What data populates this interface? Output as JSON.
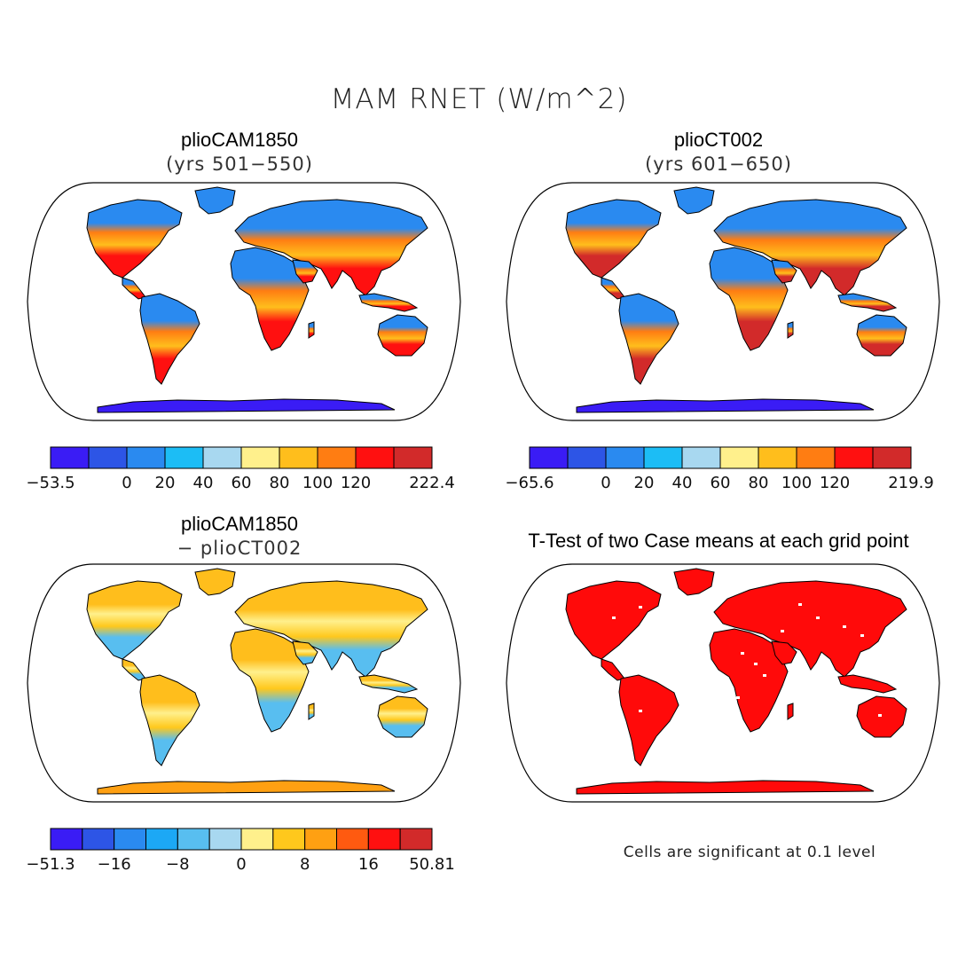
{
  "figure": {
    "title": "MAM RNET (W/m^2)"
  },
  "panels": [
    {
      "id": "cam1850",
      "title": "plioCAM1850",
      "subtitle": "(yrs 501−550)",
      "colorbar": {
        "colors": [
          "#3a1cf5",
          "#2d55e6",
          "#2a8af0",
          "#1cbdf5",
          "#a8d8f0",
          "#fff08c",
          "#ffbe1c",
          "#ff7d12",
          "#ff1010",
          "#d22a2a"
        ],
        "labels": [
          "−53.5",
          "0",
          "20",
          "40",
          "60",
          "80",
          "100",
          "120",
          "222.4"
        ],
        "label_edges": [
          0,
          2,
          3,
          4,
          5,
          6,
          7,
          8,
          10
        ]
      }
    },
    {
      "id": "ct002",
      "title": "plioCT002",
      "subtitle": "(yrs 601−650)",
      "colorbar": {
        "colors": [
          "#3a1cf5",
          "#2d55e6",
          "#2a8af0",
          "#1cbdf5",
          "#a8d8f0",
          "#fff08c",
          "#ffbe1c",
          "#ff7d12",
          "#ff1010",
          "#d22a2a"
        ],
        "labels": [
          "−65.6",
          "0",
          "20",
          "40",
          "60",
          "80",
          "100",
          "120",
          "219.9"
        ],
        "label_edges": [
          0,
          2,
          3,
          4,
          5,
          6,
          7,
          8,
          10
        ]
      }
    },
    {
      "id": "diff",
      "title": "plioCAM1850",
      "subtitle": "− plioCT002",
      "colorbar": {
        "colors": [
          "#3a1cf5",
          "#2d55e6",
          "#2a8af0",
          "#1ca8f5",
          "#58bef0",
          "#a8d8f0",
          "#fff08c",
          "#ffc81c",
          "#ffa012",
          "#ff5a10",
          "#ff1010",
          "#d22a2a"
        ],
        "labels": [
          "−51.3",
          "−16",
          "−8",
          "0",
          "8",
          "16",
          "50.81"
        ],
        "label_edges": [
          0,
          2,
          4,
          6,
          8,
          10,
          12
        ]
      }
    },
    {
      "id": "ttest",
      "title": "T-Test of two Case means at each grid point",
      "subtitle": "",
      "note": "Cells are significant at 0.1 level"
    }
  ],
  "map_colors": {
    "cam1850": {
      "ocean": "#ffffff",
      "north": "#2a8af0",
      "midlat": "#ff7d12",
      "tropics": "#ff1010",
      "desert": "#ffbe1c",
      "antarctica": "#3a1cf5"
    },
    "ct002": {
      "ocean": "#ffffff",
      "north": "#2a8af0",
      "midlat": "#ff7d12",
      "tropics": "#d22a2a",
      "desert": "#ffbe1c",
      "antarctica": "#3a1cf5"
    },
    "diff": {
      "ocean": "#ffffff",
      "north": "#ffbe1c",
      "midlat": "#fff08c",
      "tropics": "#58bef0",
      "desert": "#ffc81c",
      "antarctica": "#ffa012"
    },
    "ttest": {
      "ocean": "#ffffff",
      "land": "#ff0a0a",
      "insignificant": "#ffffff"
    }
  }
}
